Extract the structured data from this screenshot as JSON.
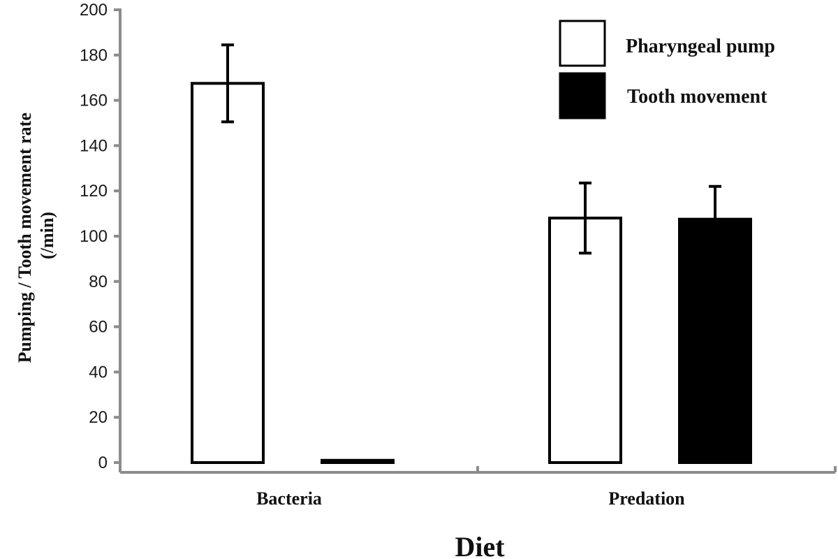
{
  "chart_data": {
    "type": "bar",
    "categories": [
      "Bacteria",
      "Predation"
    ],
    "series": [
      {
        "name": "Pharyngeal pump",
        "values": [
          167.5,
          108
        ],
        "error": [
          17,
          15.5
        ],
        "fill": "#ffffff",
        "stroke": "#000000"
      },
      {
        "name": "Tooth movement",
        "values": [
          1,
          107.5
        ],
        "error": [
          0,
          14.5
        ],
        "fill": "#000000",
        "stroke": "#000000"
      }
    ],
    "xlabel": "Diet",
    "ylabel_lines": [
      "Pumping / Tooth movement rate",
      "(/min)"
    ],
    "ylim": [
      0,
      200
    ],
    "yticks": [
      0,
      20,
      40,
      60,
      80,
      100,
      120,
      140,
      160,
      180,
      200
    ],
    "grid": false,
    "legend_position": "top-right",
    "axis_color": "#8c8c8c"
  }
}
